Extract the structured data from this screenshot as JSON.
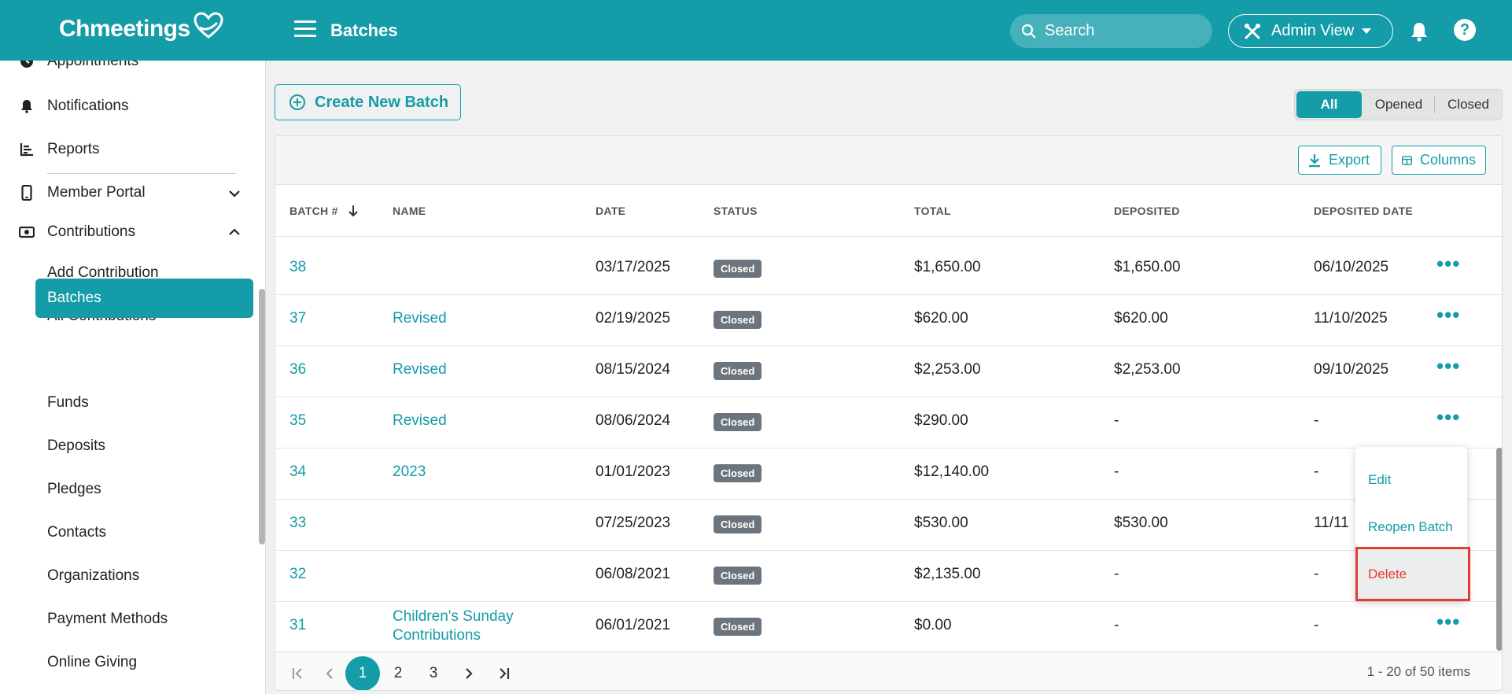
{
  "app": {
    "name": "Chmeetings",
    "page_title": "Batches"
  },
  "header": {
    "search_placeholder": "Search",
    "admin_view_label": "Admin View"
  },
  "sidebar": {
    "items": [
      {
        "label": "Appointments"
      },
      {
        "label": "Notifications"
      },
      {
        "label": "Reports"
      },
      {
        "label": "Member Portal"
      },
      {
        "label": "Contributions"
      }
    ],
    "contributions_sub": [
      "Add Contribution",
      "All Contributions",
      "Batches",
      "Funds",
      "Deposits",
      "Pledges",
      "Contacts",
      "Organizations",
      "Payment Methods",
      "Online Giving"
    ],
    "active": "Batches"
  },
  "toolbar": {
    "create_label": "Create New Batch",
    "filters": [
      "All",
      "Opened",
      "Closed"
    ],
    "active_filter": "All",
    "export_label": "Export",
    "columns_label": "Columns"
  },
  "table": {
    "columns": [
      "BATCH #",
      "NAME",
      "DATE",
      "STATUS",
      "TOTAL",
      "DEPOSITED",
      "DEPOSITED DATE"
    ],
    "rows": [
      {
        "batch": "38",
        "name": "",
        "date": "03/17/2025",
        "status": "Closed",
        "total": "$1,650.00",
        "deposited": "$1,650.00",
        "deposited_date": "06/10/2025"
      },
      {
        "batch": "37",
        "name": "Revised",
        "date": "02/19/2025",
        "status": "Closed",
        "total": "$620.00",
        "deposited": "$620.00",
        "deposited_date": "11/10/2025"
      },
      {
        "batch": "36",
        "name": "Revised",
        "date": "08/15/2024",
        "status": "Closed",
        "total": "$2,253.00",
        "deposited": "$2,253.00",
        "deposited_date": "09/10/2025"
      },
      {
        "batch": "35",
        "name": "Revised",
        "date": "08/06/2024",
        "status": "Closed",
        "total": "$290.00",
        "deposited": "-",
        "deposited_date": "-"
      },
      {
        "batch": "34",
        "name": "2023",
        "date": "01/01/2023",
        "status": "Closed",
        "total": "$12,140.00",
        "deposited": "-",
        "deposited_date": "-"
      },
      {
        "batch": "33",
        "name": "",
        "date": "07/25/2023",
        "status": "Closed",
        "total": "$530.00",
        "deposited": "$530.00",
        "deposited_date": "11/11"
      },
      {
        "batch": "32",
        "name": "",
        "date": "06/08/2021",
        "status": "Closed",
        "total": "$2,135.00",
        "deposited": "-",
        "deposited_date": "-"
      },
      {
        "batch": "31",
        "name": "Children's Sunday Contributions",
        "date": "06/01/2021",
        "status": "Closed",
        "total": "$0.00",
        "deposited": "-",
        "deposited_date": "-"
      }
    ]
  },
  "row_menu": {
    "items": [
      "Edit",
      "Reopen Batch",
      "Delete"
    ]
  },
  "pagination": {
    "pages": [
      "1",
      "2",
      "3"
    ],
    "current": "1",
    "info": "1 - 20 of 50 items"
  },
  "colors": {
    "brand": "#149ca8",
    "danger": "#e53935",
    "badge": "#6c757d"
  }
}
